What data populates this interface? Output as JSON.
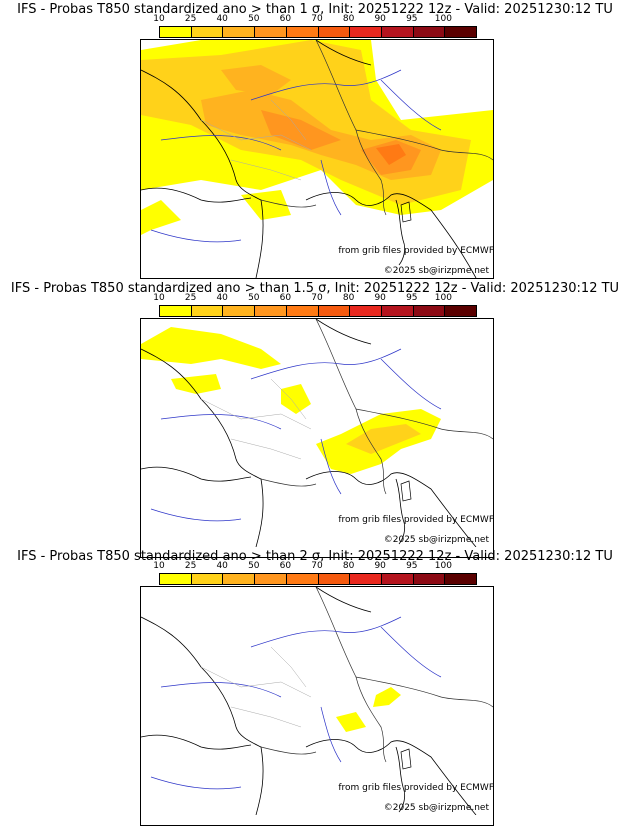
{
  "colorbar": {
    "labels": [
      "10",
      "25",
      "40",
      "50",
      "60",
      "70",
      "80",
      "90",
      "95",
      "100"
    ],
    "colors": [
      "#ffff00",
      "#ffd21a",
      "#ffb31f",
      "#ff961f",
      "#ff7a14",
      "#f55a0f",
      "#e8281e",
      "#b4141e",
      "#8c0a14",
      "#5a0000"
    ]
  },
  "panels": [
    {
      "title": "IFS - Probas T850  standardized ano > than 1 σ, Init: 20251222 12z - Valid: 20251230:12 TU",
      "source": "from grib files provided by ECMWF",
      "copyright": "©2025 sb@irizpme.net"
    },
    {
      "title": "IFS - Probas T850  standardized ano > than 1.5 σ, Init: 20251222 12z - Valid: 20251230:12 TU",
      "source": "from grib files provided by ECMWF",
      "copyright": "©2025 sb@irizpme.net"
    },
    {
      "title": "IFS - Probas T850  standardized ano > than 2 σ, Init: 20251222 12z - Valid: 20251230:12 TU",
      "source": "from grib files provided by ECMWF",
      "copyright": "©2025 sb@irizpme.net"
    }
  ]
}
